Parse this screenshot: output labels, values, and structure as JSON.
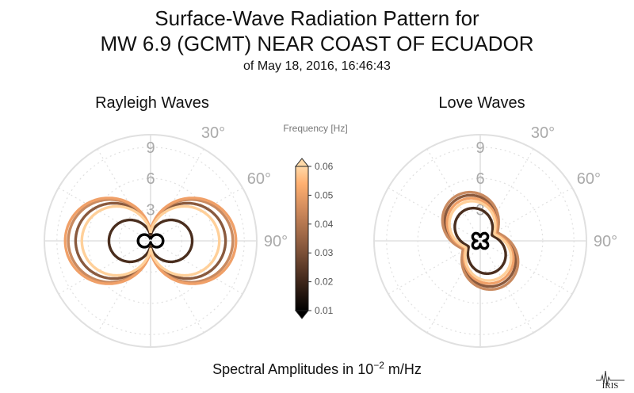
{
  "header": {
    "title_line1": "Surface-Wave Radiation Pattern for",
    "title_line2": "MW 6.9 (GCMT) NEAR COAST OF ECUADOR",
    "subtitle": "of May 18, 2016, 16:46:43"
  },
  "footer": {
    "label_prefix": "Spectral Amplitudes in 10",
    "label_exponent": "−2",
    "label_suffix": " m/Hz"
  },
  "logo": {
    "text": "IRIS",
    "icon": "iris-seismograph-logo"
  },
  "colors": {
    "grid": "#e0e0e0",
    "tick_text": "#aaaaaa",
    "colormap": [
      "#000000",
      "#5a3a28",
      "#a06a48",
      "#e0955a",
      "#ffc080",
      "#ffd9a8"
    ]
  },
  "chart_data": [
    {
      "type": "polar-line",
      "title": "Rayleigh Waves",
      "radial_ticks": [
        3,
        6,
        9
      ],
      "radial_max": 10.2,
      "angle_ticks": [
        "30°",
        "60°",
        "90°"
      ],
      "series": [
        {
          "frequency": 0.01,
          "color": "#000000",
          "amplitude": 1.2,
          "pattern": "rayleigh"
        },
        {
          "frequency": 0.02,
          "color": "#4a2e1e",
          "amplitude": 4.0,
          "pattern": "rayleigh"
        },
        {
          "frequency": 0.03,
          "color": "#8a5a3e",
          "amplitude": 7.2,
          "pattern": "rayleigh"
        },
        {
          "frequency": 0.04,
          "color": "#c98a60",
          "amplitude": 7.9,
          "pattern": "rayleigh"
        },
        {
          "frequency": 0.05,
          "color": "#f0a068",
          "amplitude": 8.2,
          "pattern": "rayleigh"
        },
        {
          "frequency": 0.06,
          "color": "#ffd09a",
          "amplitude": 6.6,
          "pattern": "rayleigh"
        }
      ]
    },
    {
      "type": "polar-line",
      "title": "Love Waves",
      "radial_ticks": [
        3,
        6,
        9
      ],
      "radial_max": 10.2,
      "angle_ticks": [
        "30°",
        "60°",
        "90°"
      ],
      "series": [
        {
          "frequency": 0.01,
          "color": "#000000",
          "amplitude": 0.9,
          "pattern": "love-clover"
        },
        {
          "frequency": 0.02,
          "color": "#4a2e1e",
          "amplitude": 3.3,
          "pattern": "love"
        },
        {
          "frequency": 0.03,
          "color": "#8a5a3e",
          "amplitude": 4.6,
          "pattern": "love"
        },
        {
          "frequency": 0.04,
          "color": "#c98a60",
          "amplitude": 4.9,
          "pattern": "love"
        },
        {
          "frequency": 0.05,
          "color": "#f0a068",
          "amplitude": 4.3,
          "pattern": "love"
        },
        {
          "frequency": 0.06,
          "color": "#ffd09a",
          "amplitude": 4.0,
          "pattern": "love"
        }
      ]
    },
    {
      "type": "colorbar",
      "label": "Frequency [Hz]",
      "min": 0.01,
      "max": 0.06,
      "ticks": [
        "0.06",
        "0.05",
        "0.04",
        "0.03",
        "0.02",
        "0.01"
      ],
      "extend": "both"
    }
  ]
}
